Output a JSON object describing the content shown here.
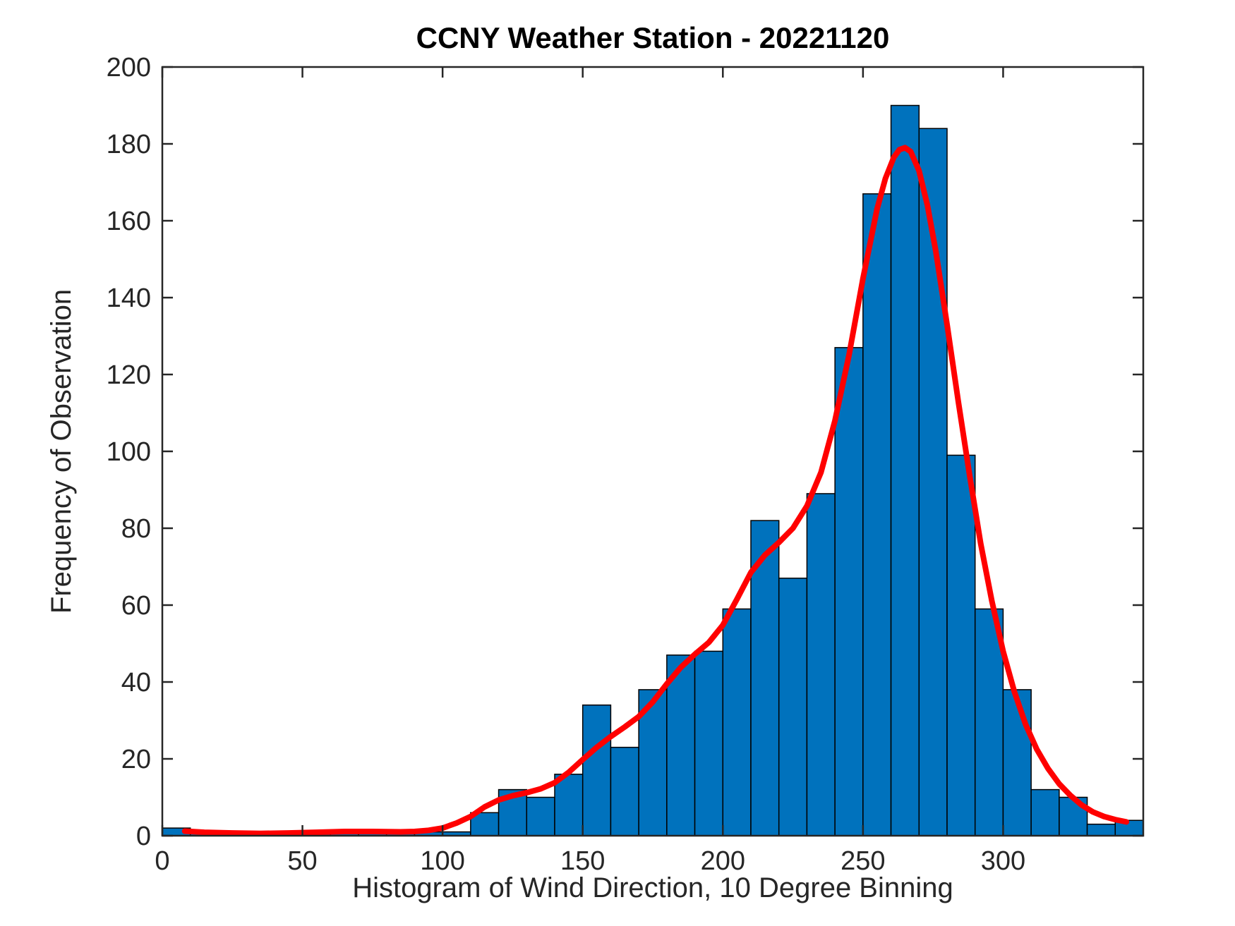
{
  "chart_data": {
    "type": "bar",
    "title": "CCNY Weather Station - 20221120",
    "xlabel": "Histogram of Wind Direction, 10 Degree Binning",
    "ylabel": "Frequency of Observation",
    "bin_width": 10,
    "bin_start": 0,
    "values": [
      2,
      1,
      1,
      0,
      0,
      1,
      1,
      1,
      1,
      1,
      1,
      6,
      12,
      10,
      16,
      34,
      23,
      38,
      47,
      48,
      59,
      82,
      67,
      89,
      127,
      167,
      190,
      184,
      99,
      59,
      38,
      12,
      10,
      3,
      4
    ],
    "xlim": [
      0,
      350
    ],
    "ylim": [
      0,
      200
    ],
    "xticks": [
      0,
      50,
      100,
      150,
      200,
      250,
      300
    ],
    "yticks": [
      0,
      20,
      40,
      60,
      80,
      100,
      120,
      140,
      160,
      180,
      200
    ],
    "grid": "off",
    "legend": "none",
    "bar_color": "#0072BD",
    "bar_edge_color": "#000000",
    "axis_color": "#262626",
    "series": [
      {
        "name": "wind-direction-frequency-histogram",
        "type": "bar"
      },
      {
        "name": "kde-fit-curve",
        "type": "line",
        "color": "#FF0000",
        "points": [
          [
            8,
            1.2
          ],
          [
            15,
            0.9
          ],
          [
            25,
            0.7
          ],
          [
            35,
            0.6
          ],
          [
            45,
            0.7
          ],
          [
            55,
            0.9
          ],
          [
            65,
            1.1
          ],
          [
            75,
            1.1
          ],
          [
            85,
            1.0
          ],
          [
            90,
            1.1
          ],
          [
            95,
            1.4
          ],
          [
            100,
            2
          ],
          [
            105,
            3.3
          ],
          [
            110,
            5.0
          ],
          [
            115,
            7.5
          ],
          [
            120,
            9.3
          ],
          [
            125,
            10.4
          ],
          [
            130,
            11.2
          ],
          [
            135,
            12.2
          ],
          [
            140,
            13.8
          ],
          [
            145,
            16.5
          ],
          [
            150,
            19.8
          ],
          [
            155,
            23
          ],
          [
            160,
            25.8
          ],
          [
            165,
            28.3
          ],
          [
            170,
            31
          ],
          [
            175,
            34.8
          ],
          [
            180,
            39.5
          ],
          [
            185,
            43.8
          ],
          [
            190,
            47.2
          ],
          [
            195,
            50.3
          ],
          [
            200,
            54.8
          ],
          [
            205,
            61.5
          ],
          [
            210,
            68.5
          ],
          [
            215,
            73
          ],
          [
            220,
            76.3
          ],
          [
            225,
            80
          ],
          [
            230,
            85.8
          ],
          [
            235,
            94.5
          ],
          [
            240,
            108
          ],
          [
            245,
            125
          ],
          [
            250,
            145
          ],
          [
            255,
            163
          ],
          [
            258,
            171
          ],
          [
            261,
            176.5
          ],
          [
            263,
            178.5
          ],
          [
            265,
            179
          ],
          [
            267,
            178
          ],
          [
            270,
            173
          ],
          [
            273,
            164
          ],
          [
            276,
            152
          ],
          [
            280,
            133
          ],
          [
            284,
            113
          ],
          [
            288,
            94
          ],
          [
            292,
            76
          ],
          [
            296,
            61
          ],
          [
            300,
            48
          ],
          [
            304,
            37.5
          ],
          [
            308,
            29
          ],
          [
            312,
            22.5
          ],
          [
            316,
            17.5
          ],
          [
            320,
            13.5
          ],
          [
            324,
            10.5
          ],
          [
            328,
            8
          ],
          [
            332,
            6.2
          ],
          [
            336,
            5
          ],
          [
            340,
            4.2
          ],
          [
            344,
            3.6
          ]
        ]
      }
    ]
  }
}
